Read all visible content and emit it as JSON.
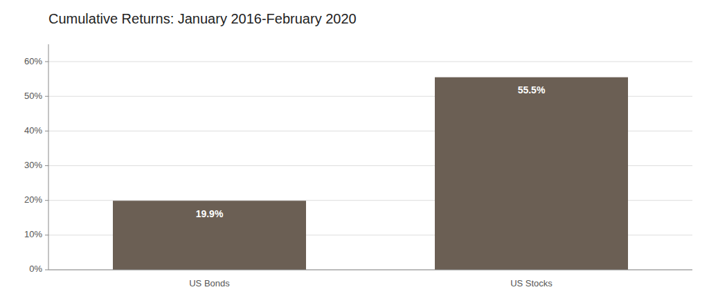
{
  "chart_data": {
    "type": "bar",
    "title": "Cumulative Returns: January 2016-February 2020",
    "categories": [
      "US Bonds",
      "US Stocks"
    ],
    "values": [
      19.9,
      55.5
    ],
    "value_labels": [
      "19.9%",
      "55.5%"
    ],
    "data_labels": true,
    "color": "#6b5f54",
    "ylim": [
      0,
      65
    ],
    "yticks": [
      {
        "value": 0,
        "label": "0%"
      },
      {
        "value": 10,
        "label": "10%"
      },
      {
        "value": 20,
        "label": "20%"
      },
      {
        "value": 30,
        "label": "30%"
      },
      {
        "value": 40,
        "label": "40%"
      },
      {
        "value": 50,
        "label": "50%"
      },
      {
        "value": 60,
        "label": "60%"
      }
    ],
    "grid": true
  }
}
